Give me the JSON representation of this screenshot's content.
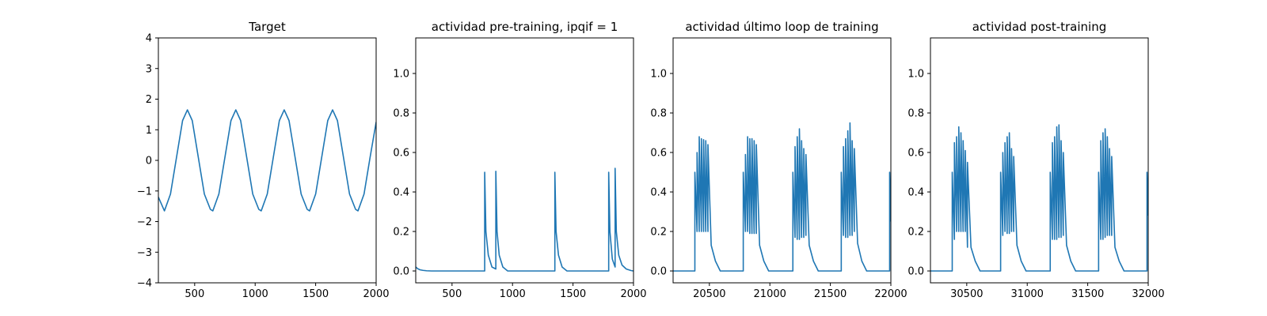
{
  "chart_data": [
    {
      "type": "line",
      "title": "Target",
      "xlim": [
        200,
        2000
      ],
      "ylim": [
        -4,
        4
      ],
      "xticks": [
        500,
        1000,
        1500,
        2000
      ],
      "yticks": [
        -4,
        -3,
        -2,
        -1,
        0,
        1,
        2,
        3,
        4
      ],
      "series": [
        {
          "x": [
            200,
            250,
            300,
            350,
            400,
            440,
            480,
            530,
            580,
            630,
            650,
            700,
            750,
            800,
            840,
            880,
            930,
            980,
            1030,
            1050,
            1100,
            1150,
            1200,
            1240,
            1280,
            1330,
            1380,
            1430,
            1450,
            1500,
            1550,
            1600,
            1640,
            1680,
            1730,
            1780,
            1830,
            1850,
            1900,
            1950,
            2000
          ],
          "y": [
            -1.2,
            -1.65,
            -1.1,
            0.1,
            1.3,
            1.65,
            1.3,
            0.1,
            -1.1,
            -1.6,
            -1.65,
            -1.1,
            0.1,
            1.3,
            1.65,
            1.3,
            0.1,
            -1.1,
            -1.6,
            -1.65,
            -1.1,
            0.1,
            1.3,
            1.65,
            1.3,
            0.1,
            -1.1,
            -1.6,
            -1.65,
            -1.1,
            0.1,
            1.3,
            1.65,
            1.3,
            0.1,
            -1.1,
            -1.6,
            -1.65,
            -1.1,
            0.1,
            1.25
          ]
        }
      ]
    },
    {
      "type": "line",
      "title": "actividad pre-training, ipqif = 1",
      "xlim": [
        200,
        2000
      ],
      "ylim": [
        -0.06,
        1.18
      ],
      "xticks": [
        500,
        1000,
        1500,
        2000
      ],
      "yticks": [
        0.0,
        0.2,
        0.4,
        0.6,
        0.8,
        1.0
      ],
      "series": [
        {
          "x": [
            200,
            215,
            235,
            260,
            290,
            330,
            770,
            770,
            780,
            800,
            830,
            862,
            862,
            872,
            890,
            920,
            960,
            1350,
            1350,
            1360,
            1380,
            1410,
            1450,
            1795,
            1795,
            1805,
            1825,
            1848,
            1848,
            1858,
            1878,
            1905,
            1940,
            1980,
            2000
          ],
          "y": [
            0.02,
            0.012,
            0.006,
            0.003,
            0.001,
            0.0,
            0.0,
            0.5,
            0.2,
            0.08,
            0.02,
            0.01,
            0.505,
            0.2,
            0.08,
            0.02,
            0.0,
            0.0,
            0.5,
            0.2,
            0.08,
            0.02,
            0.0,
            0.0,
            0.5,
            0.2,
            0.06,
            0.02,
            0.52,
            0.2,
            0.08,
            0.03,
            0.01,
            0.002,
            0.0
          ]
        }
      ]
    },
    {
      "type": "line",
      "title": "actividad último loop de training",
      "xlim": [
        20200,
        22000
      ],
      "ylim": [
        -0.06,
        1.18
      ],
      "xticks": [
        20500,
        21000,
        21500,
        22000
      ],
      "yticks": [
        0.0,
        0.2,
        0.4,
        0.6,
        0.8,
        1.0
      ],
      "series": [
        {
          "x": [
            20200,
            20380,
            20380,
            20398,
            20398,
            20416,
            20416,
            20434,
            20434,
            20452,
            20452,
            20470,
            20470,
            20488,
            20488,
            20515,
            20550,
            20590,
            20780,
            20780,
            20798,
            20798,
            20816,
            20816,
            20834,
            20834,
            20852,
            20852,
            20870,
            20870,
            20888,
            20888,
            20915,
            20950,
            20990,
            21190,
            21190,
            21208,
            21208,
            21226,
            21226,
            21244,
            21244,
            21262,
            21262,
            21280,
            21280,
            21298,
            21298,
            21325,
            21360,
            21400,
            21590,
            21590,
            21608,
            21608,
            21626,
            21626,
            21644,
            21644,
            21662,
            21662,
            21680,
            21680,
            21698,
            21698,
            21725,
            21760,
            21800,
            21990,
            21990,
            22000
          ],
          "y": [
            0.0,
            0.0,
            0.5,
            0.2,
            0.6,
            0.2,
            0.68,
            0.2,
            0.67,
            0.2,
            0.665,
            0.2,
            0.66,
            0.2,
            0.64,
            0.13,
            0.05,
            0.0,
            0.0,
            0.5,
            0.2,
            0.59,
            0.2,
            0.68,
            0.19,
            0.67,
            0.19,
            0.67,
            0.19,
            0.66,
            0.19,
            0.64,
            0.13,
            0.05,
            0.0,
            0.0,
            0.5,
            0.17,
            0.63,
            0.16,
            0.68,
            0.16,
            0.72,
            0.17,
            0.66,
            0.17,
            0.62,
            0.18,
            0.59,
            0.13,
            0.05,
            0.0,
            0.0,
            0.5,
            0.18,
            0.63,
            0.17,
            0.67,
            0.17,
            0.71,
            0.18,
            0.75,
            0.18,
            0.66,
            0.2,
            0.62,
            0.14,
            0.05,
            0.0,
            0.0,
            0.5,
            0.25
          ]
        }
      ]
    },
    {
      "type": "line",
      "title": "actividad post-training",
      "xlim": [
        30200,
        32000
      ],
      "ylim": [
        -0.06,
        1.18
      ],
      "xticks": [
        30500,
        31000,
        31500,
        32000
      ],
      "yticks": [
        0.0,
        0.2,
        0.4,
        0.6,
        0.8,
        1.0
      ],
      "series": [
        {
          "x": [
            30200,
            30380,
            30380,
            30398,
            30398,
            30416,
            30416,
            30434,
            30434,
            30452,
            30452,
            30470,
            30470,
            30488,
            30488,
            30506,
            30506,
            30535,
            30570,
            30610,
            30780,
            30780,
            30798,
            30798,
            30816,
            30816,
            30834,
            30834,
            30852,
            30852,
            30870,
            30870,
            30888,
            30888,
            30915,
            30950,
            30990,
            31190,
            31190,
            31208,
            31208,
            31226,
            31226,
            31244,
            31244,
            31262,
            31262,
            31280,
            31280,
            31298,
            31298,
            31325,
            31360,
            31400,
            31590,
            31590,
            31608,
            31608,
            31626,
            31626,
            31644,
            31644,
            31662,
            31662,
            31680,
            31680,
            31698,
            31698,
            31725,
            31760,
            31800,
            31990,
            31990,
            32000
          ],
          "y": [
            0.0,
            0.0,
            0.5,
            0.16,
            0.65,
            0.2,
            0.68,
            0.2,
            0.73,
            0.2,
            0.7,
            0.2,
            0.66,
            0.2,
            0.61,
            0.12,
            0.55,
            0.12,
            0.05,
            0.0,
            0.0,
            0.5,
            0.18,
            0.6,
            0.2,
            0.65,
            0.19,
            0.68,
            0.19,
            0.7,
            0.2,
            0.62,
            0.2,
            0.58,
            0.13,
            0.05,
            0.0,
            0.0,
            0.5,
            0.16,
            0.65,
            0.16,
            0.68,
            0.16,
            0.73,
            0.17,
            0.74,
            0.17,
            0.66,
            0.18,
            0.6,
            0.13,
            0.05,
            0.0,
            0.0,
            0.5,
            0.16,
            0.66,
            0.16,
            0.7,
            0.17,
            0.72,
            0.18,
            0.68,
            0.18,
            0.62,
            0.18,
            0.58,
            0.12,
            0.05,
            0.0,
            0.0,
            0.5,
            0.28
          ]
        }
      ]
    }
  ]
}
